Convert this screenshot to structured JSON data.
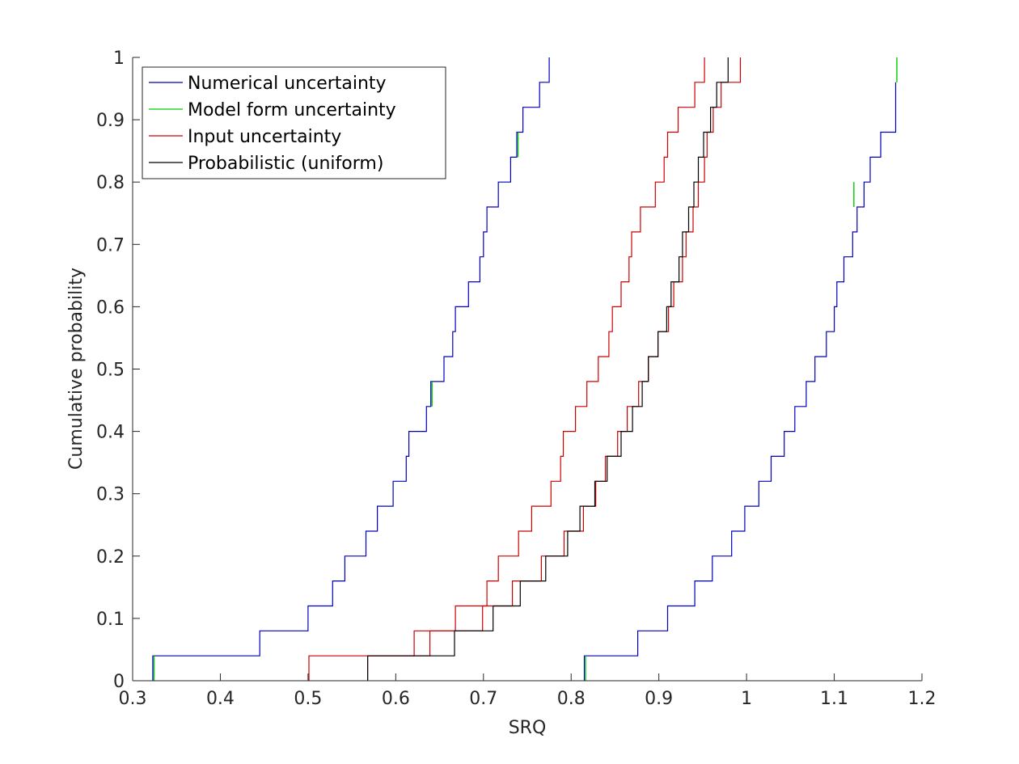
{
  "chart_data": {
    "type": "line",
    "step": true,
    "xlabel": "SRQ",
    "ylabel": "Cumulative probability",
    "xlim": [
      0.3,
      1.2
    ],
    "ylim": [
      0,
      1
    ],
    "xticks": [
      0.3,
      0.4,
      0.5,
      0.6,
      0.7,
      0.8,
      0.9,
      1.0,
      1.1,
      1.2
    ],
    "xtick_labels": [
      "0.3",
      "0.4",
      "0.5",
      "0.6",
      "0.7",
      "0.8",
      "0.9",
      "1",
      "1.1",
      "1.2"
    ],
    "yticks": [
      0,
      0.1,
      0.2,
      0.3,
      0.4,
      0.5,
      0.6,
      0.7,
      0.8,
      0.9,
      1.0
    ],
    "ytick_labels": [
      "0",
      "0.1",
      "0.2",
      "0.3",
      "0.4",
      "0.5",
      "0.6",
      "0.7",
      "0.8",
      "0.9",
      "1"
    ],
    "grid": false,
    "legend_position": "top-left",
    "legend": [
      {
        "label": "Numerical uncertainty",
        "color": "#0000bb"
      },
      {
        "label": "Model form uncertainty",
        "color": "#00cc00"
      },
      {
        "label": "Input uncertainty",
        "color": "#cc0000"
      },
      {
        "label": "Probabilistic (uniform)",
        "color": "#000000"
      }
    ],
    "series": [
      {
        "name": "Numerical uncertainty",
        "color": "#0000bb",
        "x": [
          0.323,
          0.445,
          0.5,
          0.528,
          0.542,
          0.566,
          0.579,
          0.597,
          0.612,
          0.615,
          0.635,
          0.64,
          0.655,
          0.665,
          0.668,
          0.683,
          0.696,
          0.7,
          0.704,
          0.717,
          0.731,
          0.738,
          0.745,
          0.764,
          0.775
        ],
        "y": [
          0.04,
          0.08,
          0.12,
          0.16,
          0.2,
          0.24,
          0.28,
          0.32,
          0.36,
          0.4,
          0.44,
          0.48,
          0.52,
          0.56,
          0.6,
          0.64,
          0.68,
          0.72,
          0.76,
          0.8,
          0.84,
          0.88,
          0.92,
          0.96,
          1.0
        ]
      },
      {
        "name": "Numerical uncertainty (upper)",
        "color": "#0000bb",
        "x": [
          0.815,
          0.876,
          0.91,
          0.941,
          0.961,
          0.983,
          0.998,
          1.014,
          1.028,
          1.043,
          1.055,
          1.068,
          1.078,
          1.091,
          1.1,
          1.103,
          1.111,
          1.121,
          1.126,
          1.134,
          1.141,
          1.153,
          1.17
        ],
        "y": [
          0.04,
          0.08,
          0.12,
          0.16,
          0.2,
          0.24,
          0.28,
          0.32,
          0.36,
          0.4,
          0.44,
          0.48,
          0.52,
          0.56,
          0.6,
          0.64,
          0.68,
          0.72,
          0.76,
          0.8,
          0.84,
          0.88,
          0.96
        ]
      },
      {
        "name": "Input uncertainty",
        "color": "#cc0000",
        "x": [
          0.501,
          0.621,
          0.668,
          0.704,
          0.717,
          0.74,
          0.755,
          0.777,
          0.788,
          0.791,
          0.805,
          0.818,
          0.831,
          0.843,
          0.847,
          0.857,
          0.866,
          0.869,
          0.879,
          0.896,
          0.906,
          0.91,
          0.922,
          0.941,
          0.952
        ],
        "y": [
          0.04,
          0.08,
          0.12,
          0.16,
          0.2,
          0.24,
          0.28,
          0.32,
          0.36,
          0.4,
          0.44,
          0.48,
          0.52,
          0.56,
          0.6,
          0.64,
          0.68,
          0.72,
          0.76,
          0.8,
          0.84,
          0.88,
          0.92,
          0.96,
          1.0
        ]
      },
      {
        "name": "Input uncertainty (upper)",
        "color": "#cc0000",
        "x": [
          0.568,
          0.639,
          0.699,
          0.733,
          0.766,
          0.792,
          0.814,
          0.828,
          0.839,
          0.853,
          0.864,
          0.877,
          0.888,
          0.899,
          0.911,
          0.917,
          0.927,
          0.931,
          0.939,
          0.945,
          0.952,
          0.955,
          0.962,
          0.971,
          0.993
        ],
        "y": [
          0.04,
          0.08,
          0.12,
          0.16,
          0.2,
          0.24,
          0.28,
          0.32,
          0.36,
          0.4,
          0.44,
          0.48,
          0.52,
          0.56,
          0.6,
          0.64,
          0.68,
          0.72,
          0.76,
          0.8,
          0.84,
          0.88,
          0.92,
          0.96,
          1.0
        ]
      },
      {
        "name": "Probabilistic (uniform)",
        "color": "#000000",
        "x": [
          0.568,
          0.667,
          0.711,
          0.742,
          0.771,
          0.796,
          0.81,
          0.827,
          0.841,
          0.857,
          0.87,
          0.881,
          0.888,
          0.899,
          0.909,
          0.914,
          0.923,
          0.927,
          0.934,
          0.94,
          0.945,
          0.951,
          0.959,
          0.966,
          0.979
        ],
        "y": [
          0.04,
          0.08,
          0.12,
          0.16,
          0.2,
          0.24,
          0.28,
          0.32,
          0.36,
          0.4,
          0.44,
          0.48,
          0.52,
          0.56,
          0.6,
          0.64,
          0.68,
          0.72,
          0.76,
          0.8,
          0.84,
          0.88,
          0.92,
          0.96,
          1.0
        ]
      }
    ],
    "model_form_marks": [
      {
        "x": 0.323,
        "y0": 0.0,
        "y1": 0.04
      },
      {
        "x": 0.64,
        "y0": 0.44,
        "y1": 0.48
      },
      {
        "x": 0.738,
        "y0": 0.84,
        "y1": 0.88
      },
      {
        "x": 0.815,
        "y0": 0.0,
        "y1": 0.04
      },
      {
        "x": 1.121,
        "y0": 0.76,
        "y1": 0.8
      },
      {
        "x": 1.17,
        "y0": 0.96,
        "y1": 1.0
      }
    ]
  }
}
